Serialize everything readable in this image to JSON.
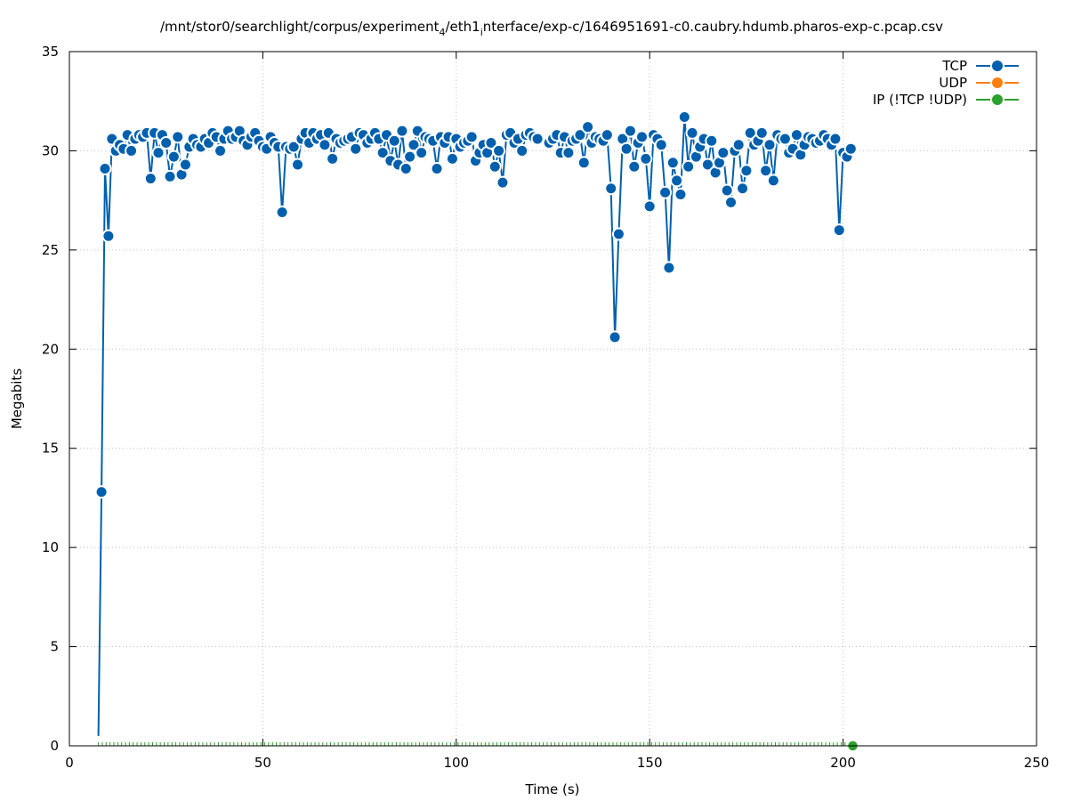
{
  "chart_data": {
    "type": "line",
    "title": "/mnt/stor0/searchlight/corpus/experiment",
    "title_sub1": "4",
    "title_mid": "/eth1",
    "title_sub2": "i",
    "title_end": "nterface/exp-c/1646951691-c0.caubry.hdumb.pharos-exp-c.pcap.csv",
    "xlabel": "Time (s)",
    "ylabel": "Megabits",
    "xlim": [
      0,
      250
    ],
    "ylim": [
      0,
      35
    ],
    "xticks": [
      0,
      50,
      100,
      150,
      200,
      250
    ],
    "yticks": [
      0,
      5,
      10,
      15,
      20,
      25,
      30,
      35
    ],
    "grid": true,
    "legend_position": "top-right",
    "series": [
      {
        "name": "TCP",
        "color": "#0060ad",
        "x": [
          7.5,
          8.3,
          9.2,
          10.1,
          11,
          12,
          13,
          14,
          15,
          16,
          17,
          18,
          19,
          20,
          21,
          22,
          23,
          24,
          25,
          26,
          27,
          28,
          29,
          30,
          31,
          32,
          33,
          34,
          35,
          36,
          37,
          38,
          39,
          40,
          41,
          42,
          43,
          44,
          45,
          46,
          47,
          48,
          49,
          50,
          51,
          52,
          53,
          54,
          55,
          56,
          57,
          58,
          59,
          60,
          61,
          62,
          63,
          64,
          65,
          66,
          67,
          68,
          69,
          70,
          71,
          72,
          73,
          74,
          75,
          76,
          77,
          78,
          79,
          80,
          81,
          82,
          83,
          84,
          85,
          86,
          87,
          88,
          89,
          90,
          91,
          92,
          93,
          94,
          95,
          96,
          97,
          98,
          99,
          100,
          101,
          102,
          103,
          104,
          105,
          106,
          107,
          108,
          109,
          110,
          111,
          112,
          113,
          114,
          115,
          116,
          117,
          118,
          119,
          120,
          121,
          124,
          125,
          126,
          127,
          128,
          129,
          130,
          131,
          132,
          133,
          134,
          135,
          136,
          137,
          138,
          139,
          140,
          141,
          142,
          143,
          144,
          145,
          146,
          147,
          148,
          149,
          150,
          151,
          152,
          153,
          154,
          155,
          156,
          157,
          158,
          159,
          160,
          161,
          162,
          163,
          164,
          165,
          166,
          167,
          168,
          169,
          170,
          171,
          172,
          173,
          174,
          175,
          176,
          177,
          178,
          179,
          180,
          181,
          182,
          183,
          184,
          185,
          186,
          187,
          188,
          189,
          190,
          191,
          192,
          193,
          194,
          195,
          196,
          197,
          198,
          199,
          200,
          201,
          202
        ],
        "y": [
          0.5,
          12.8,
          29.1,
          25.7,
          30.6,
          30.0,
          30.3,
          30.1,
          30.8,
          30.0,
          30.6,
          30.8,
          30.7,
          30.9,
          28.6,
          30.9,
          29.9,
          30.8,
          30.4,
          28.7,
          29.7,
          30.7,
          28.8,
          29.3,
          30.2,
          30.6,
          30.3,
          30.2,
          30.6,
          30.4,
          30.9,
          30.7,
          30.0,
          30.6,
          31.0,
          30.6,
          30.7,
          31.0,
          30.5,
          30.3,
          30.7,
          30.9,
          30.5,
          30.2,
          30.1,
          30.7,
          30.4,
          30.2,
          26.9,
          30.2,
          30.1,
          30.2,
          29.3,
          30.6,
          30.9,
          30.4,
          30.9,
          30.6,
          30.8,
          30.3,
          30.9,
          29.6,
          30.6,
          30.4,
          30.5,
          30.6,
          30.7,
          30.1,
          30.9,
          30.8,
          30.4,
          30.6,
          30.9,
          30.6,
          29.9,
          30.8,
          29.5,
          30.5,
          29.3,
          31.0,
          29.1,
          29.7,
          30.3,
          31.0,
          29.9,
          30.7,
          30.6,
          30.5,
          29.1,
          30.7,
          30.4,
          30.7,
          29.6,
          30.6,
          30.2,
          30.4,
          30.5,
          30.7,
          29.5,
          29.9,
          30.3,
          29.9,
          30.4,
          29.2,
          30.0,
          28.4,
          30.8,
          30.9,
          30.4,
          30.6,
          30.0,
          30.8,
          30.9,
          30.7,
          30.6,
          30.4,
          30.6,
          30.8,
          29.9,
          30.7,
          29.9,
          30.5,
          30.6,
          30.8,
          29.4,
          31.2,
          30.4,
          30.7,
          30.6,
          30.5,
          30.8,
          28.1,
          20.6,
          25.8,
          30.6,
          30.1,
          31.0,
          29.2,
          30.4,
          30.7,
          29.6,
          27.2,
          30.8,
          30.6,
          30.3,
          27.9,
          24.1,
          29.4,
          28.5,
          27.8,
          31.7,
          29.2,
          30.9,
          29.7,
          30.2,
          30.6,
          29.3,
          30.5,
          28.9,
          29.4,
          29.9,
          28.0,
          27.4,
          30.0,
          30.3,
          28.1,
          29.0,
          30.9,
          30.3,
          30.5,
          30.9,
          29.0,
          30.3,
          28.5,
          30.8,
          30.6,
          30.6,
          29.9,
          30.1,
          30.8,
          29.8,
          30.3,
          30.7,
          30.6,
          30.4,
          30.5,
          30.8,
          30.6,
          30.3,
          30.6,
          26.0,
          29.9,
          29.7,
          30.1
        ]
      },
      {
        "name": "UDP",
        "color": "#ff7f0e",
        "x": [],
        "y": []
      },
      {
        "name": "IP (!TCP  !UDP)",
        "color": "#2ca02c",
        "x": [
          7.5,
          8.5,
          9.5,
          10.5,
          11.5,
          12.5,
          13.5,
          14.5,
          15.5,
          16.5,
          17.5,
          18.5,
          19.5,
          20.5,
          21.5,
          22.5,
          23.5,
          24.5,
          25.5,
          26.5,
          27.5,
          28.5,
          29.5,
          30.5,
          31.5,
          32.5,
          33.5,
          34.5,
          35.5,
          36.5,
          37.5,
          38.5,
          39.5,
          40.5,
          41.5,
          42.5,
          43.5,
          44.5,
          45.5,
          46.5,
          47.5,
          48.5,
          49.5,
          50.5,
          51.5,
          52.5,
          53.5,
          54.5,
          55.5,
          56.5,
          57.5,
          58.5,
          59.5,
          60.5,
          61.5,
          62.5,
          63.5,
          64.5,
          65.5,
          66.5,
          67.5,
          68.5,
          69.5,
          70.5,
          71.5,
          72.5,
          73.5,
          74.5,
          75.5,
          76.5,
          77.5,
          78.5,
          79.5,
          80.5,
          81.5,
          82.5,
          83.5,
          84.5,
          85.5,
          86.5,
          87.5,
          88.5,
          89.5,
          90.5,
          91.5,
          92.5,
          93.5,
          94.5,
          95.5,
          96.5,
          97.5,
          98.5,
          99.5,
          100.5,
          101.5,
          102.5,
          103.5,
          104.5,
          105.5,
          106.5,
          107.5,
          108.5,
          109.5,
          110.5,
          111.5,
          112.5,
          113.5,
          114.5,
          115.5,
          116.5,
          117.5,
          118.5,
          119.5,
          120.5,
          121.5,
          122.5,
          123.5,
          124.5,
          125.5,
          126.5,
          127.5,
          128.5,
          129.5,
          130.5,
          131.5,
          132.5,
          133.5,
          134.5,
          135.5,
          136.5,
          137.5,
          138.5,
          139.5,
          140.5,
          141.5,
          142.5,
          143.5,
          144.5,
          145.5,
          146.5,
          147.5,
          148.5,
          149.5,
          150.5,
          151.5,
          152.5,
          153.5,
          154.5,
          155.5,
          156.5,
          157.5,
          158.5,
          159.5,
          160.5,
          161.5,
          162.5,
          163.5,
          164.5,
          165.5,
          166.5,
          167.5,
          168.5,
          169.5,
          170.5,
          171.5,
          172.5,
          173.5,
          174.5,
          175.5,
          176.5,
          177.5,
          178.5,
          179.5,
          180.5,
          181.5,
          182.5,
          183.5,
          184.5,
          185.5,
          186.5,
          187.5,
          188.5,
          189.5,
          190.5,
          191.5,
          192.5,
          193.5,
          194.5,
          195.5,
          196.5,
          197.5,
          198.5,
          199.5,
          200.5,
          201.5,
          202.5
        ],
        "y": [
          0,
          0,
          0,
          0,
          0,
          0,
          0,
          0,
          0,
          0,
          0,
          0,
          0,
          0,
          0,
          0,
          0,
          0,
          0,
          0,
          0,
          0,
          0,
          0,
          0,
          0,
          0,
          0,
          0,
          0,
          0,
          0,
          0,
          0,
          0,
          0,
          0,
          0,
          0,
          0,
          0,
          0,
          0,
          0,
          0,
          0,
          0,
          0,
          0,
          0,
          0,
          0,
          0,
          0,
          0,
          0,
          0,
          0,
          0,
          0,
          0,
          0,
          0,
          0,
          0,
          0,
          0,
          0,
          0,
          0,
          0,
          0,
          0,
          0,
          0,
          0,
          0,
          0,
          0,
          0,
          0,
          0,
          0,
          0,
          0,
          0,
          0,
          0,
          0,
          0,
          0,
          0,
          0,
          0,
          0,
          0,
          0,
          0,
          0,
          0,
          0,
          0,
          0,
          0,
          0,
          0,
          0,
          0,
          0,
          0,
          0,
          0,
          0,
          0,
          0,
          0,
          0,
          0,
          0,
          0,
          0,
          0,
          0,
          0,
          0,
          0,
          0,
          0,
          0,
          0,
          0,
          0,
          0,
          0,
          0,
          0,
          0,
          0,
          0,
          0,
          0,
          0,
          0,
          0,
          0,
          0,
          0,
          0,
          0,
          0,
          0,
          0,
          0,
          0,
          0,
          0,
          0,
          0,
          0,
          0,
          0,
          0,
          0,
          0,
          0,
          0,
          0,
          0,
          0,
          0,
          0,
          0,
          0,
          0,
          0,
          0,
          0,
          0,
          0,
          0,
          0,
          0,
          0,
          0,
          0,
          0,
          0,
          0,
          0,
          0,
          0,
          0,
          0,
          0,
          0,
          0
        ]
      }
    ]
  }
}
